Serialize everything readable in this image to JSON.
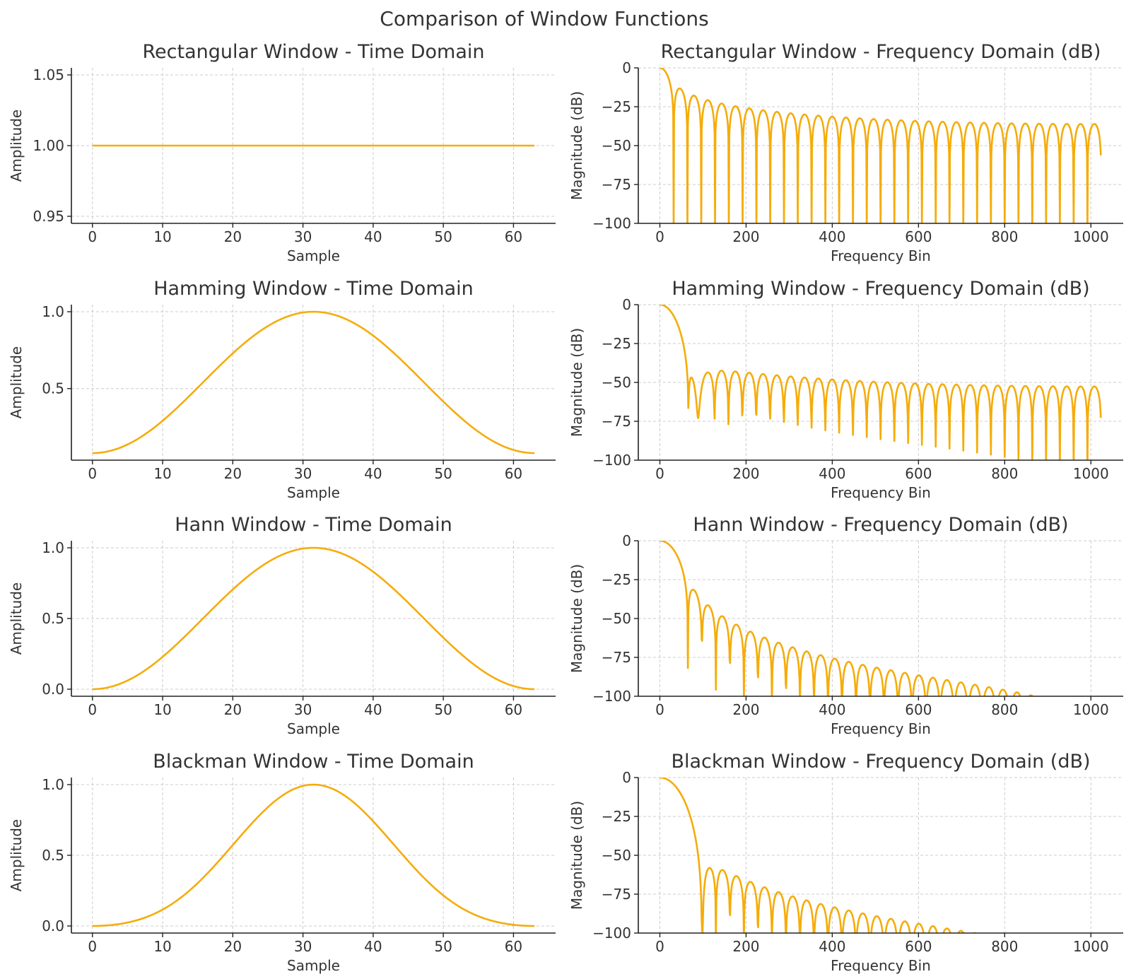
{
  "figure": {
    "title": "Comparison of Window Functions"
  },
  "colors": {
    "line": "#f5ac0a",
    "grid": "#cccccc",
    "axis": "#222222",
    "text": "#333333"
  },
  "chart_data": [
    {
      "id": "rect-time",
      "type": "line",
      "title": "Rectangular Window - Time Domain",
      "xlabel": "Sample",
      "ylabel": "Amplitude",
      "xlim": [
        -3,
        66
      ],
      "ylim": [
        0.945,
        1.055
      ],
      "xticks": [
        0,
        10,
        20,
        30,
        40,
        50,
        60
      ],
      "xtick_labels": [
        "0",
        "10",
        "20",
        "30",
        "40",
        "50",
        "60"
      ],
      "yticks": [
        0.95,
        1.0,
        1.05
      ],
      "ytick_labels": [
        "0.95",
        "1.00",
        "1.05"
      ],
      "grid": true,
      "window": "rectangular",
      "N": 64,
      "x_range": [
        0,
        63
      ]
    },
    {
      "id": "rect-freq",
      "type": "line",
      "title": "Rectangular Window - Frequency Domain (dB)",
      "xlabel": "Frequency Bin",
      "ylabel": "Magnitude (dB)",
      "xlim": [
        -50,
        1075
      ],
      "ylim": [
        -100,
        0
      ],
      "xticks": [
        0,
        200,
        400,
        600,
        800,
        1000
      ],
      "xtick_labels": [
        "0",
        "200",
        "400",
        "600",
        "800",
        "1000"
      ],
      "yticks": [
        0,
        -25,
        -50,
        -75,
        -100
      ],
      "ytick_labels": [
        "0",
        "−25",
        "−50",
        "−75",
        "−100"
      ],
      "grid": true,
      "window": "rectangular",
      "N": 64,
      "fft_size": 2048,
      "x_range": [
        0,
        1023
      ]
    },
    {
      "id": "hamming-time",
      "type": "line",
      "title": "Hamming Window - Time Domain",
      "xlabel": "Sample",
      "ylabel": "Amplitude",
      "xlim": [
        -3,
        66
      ],
      "ylim": [
        0.034,
        1.046
      ],
      "xticks": [
        0,
        10,
        20,
        30,
        40,
        50,
        60
      ],
      "xtick_labels": [
        "0",
        "10",
        "20",
        "30",
        "40",
        "50",
        "60"
      ],
      "yticks": [
        0.5,
        1.0
      ],
      "ytick_labels": [
        "0.5",
        "1.0"
      ],
      "grid": true,
      "window": "hamming",
      "N": 64,
      "x_range": [
        0,
        63
      ]
    },
    {
      "id": "hamming-freq",
      "type": "line",
      "title": "Hamming Window - Frequency Domain (dB)",
      "xlabel": "Frequency Bin",
      "ylabel": "Magnitude (dB)",
      "xlim": [
        -50,
        1075
      ],
      "ylim": [
        -100,
        0
      ],
      "xticks": [
        0,
        200,
        400,
        600,
        800,
        1000
      ],
      "xtick_labels": [
        "0",
        "200",
        "400",
        "600",
        "800",
        "1000"
      ],
      "yticks": [
        0,
        -25,
        -50,
        -75,
        -100
      ],
      "ytick_labels": [
        "0",
        "−25",
        "−50",
        "−75",
        "−100"
      ],
      "grid": true,
      "window": "hamming",
      "N": 64,
      "fft_size": 2048,
      "x_range": [
        0,
        1023
      ]
    },
    {
      "id": "hann-time",
      "type": "line",
      "title": "Hann Window - Time Domain",
      "xlabel": "Sample",
      "ylabel": "Amplitude",
      "xlim": [
        -3,
        66
      ],
      "ylim": [
        -0.05,
        1.05
      ],
      "xticks": [
        0,
        10,
        20,
        30,
        40,
        50,
        60
      ],
      "xtick_labels": [
        "0",
        "10",
        "20",
        "30",
        "40",
        "50",
        "60"
      ],
      "yticks": [
        0.0,
        0.5,
        1.0
      ],
      "ytick_labels": [
        "0.0",
        "0.5",
        "1.0"
      ],
      "grid": true,
      "window": "hann",
      "N": 64,
      "x_range": [
        0,
        63
      ]
    },
    {
      "id": "hann-freq",
      "type": "line",
      "title": "Hann Window - Frequency Domain (dB)",
      "xlabel": "Frequency Bin",
      "ylabel": "Magnitude (dB)",
      "xlim": [
        -50,
        1075
      ],
      "ylim": [
        -100,
        0
      ],
      "xticks": [
        0,
        200,
        400,
        600,
        800,
        1000
      ],
      "xtick_labels": [
        "0",
        "200",
        "400",
        "600",
        "800",
        "1000"
      ],
      "yticks": [
        0,
        -25,
        -50,
        -75,
        -100
      ],
      "ytick_labels": [
        "0",
        "−25",
        "−50",
        "−75",
        "−100"
      ],
      "grid": true,
      "window": "hann",
      "N": 64,
      "fft_size": 2048,
      "x_range": [
        0,
        1023
      ]
    },
    {
      "id": "blackman-time",
      "type": "line",
      "title": "Blackman Window - Time Domain",
      "xlabel": "Sample",
      "ylabel": "Amplitude",
      "xlim": [
        -3,
        66
      ],
      "ylim": [
        -0.05,
        1.05
      ],
      "xticks": [
        0,
        10,
        20,
        30,
        40,
        50,
        60
      ],
      "xtick_labels": [
        "0",
        "10",
        "20",
        "30",
        "40",
        "50",
        "60"
      ],
      "yticks": [
        0.0,
        0.5,
        1.0
      ],
      "ytick_labels": [
        "0.0",
        "0.5",
        "1.0"
      ],
      "grid": true,
      "window": "blackman",
      "N": 64,
      "x_range": [
        0,
        63
      ]
    },
    {
      "id": "blackman-freq",
      "type": "line",
      "title": "Blackman Window - Frequency Domain (dB)",
      "xlabel": "Frequency Bin",
      "ylabel": "Magnitude (dB)",
      "xlim": [
        -50,
        1075
      ],
      "ylim": [
        -100,
        0
      ],
      "xticks": [
        0,
        200,
        400,
        600,
        800,
        1000
      ],
      "xtick_labels": [
        "0",
        "200",
        "400",
        "600",
        "800",
        "1000"
      ],
      "yticks": [
        0,
        -25,
        -50,
        -75,
        -100
      ],
      "ytick_labels": [
        "0",
        "−25",
        "−50",
        "−75",
        "−100"
      ],
      "grid": true,
      "window": "blackman",
      "N": 64,
      "fft_size": 2048,
      "x_range": [
        0,
        1023
      ]
    }
  ]
}
